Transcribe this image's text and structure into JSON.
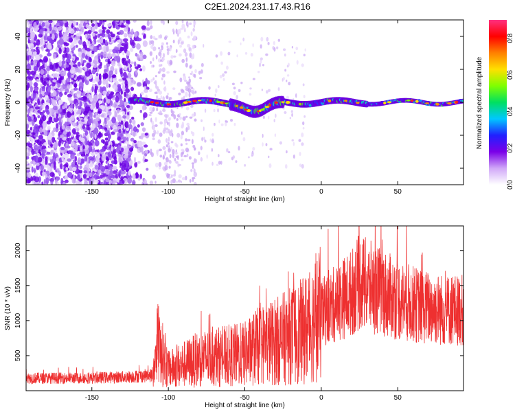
{
  "title": "C2E1.2024.231.17.43.R16",
  "chart_data": [
    {
      "type": "heatmap",
      "xlabel": "Height of straight line (km)",
      "ylabel": "Frequency (Hz)",
      "xlim": [
        -193,
        93
      ],
      "ylim": [
        -50,
        50
      ],
      "xticks": [
        -150,
        -100,
        -50,
        0,
        50
      ],
      "yticks": [
        -40,
        -20,
        0,
        20,
        40
      ],
      "colorbar": {
        "label": "Normalized spectral amplitude",
        "range": [
          0,
          0.9
        ],
        "ticks": [
          "0.0",
          "0.2",
          "0.4",
          "0.6",
          "0.8"
        ],
        "colormap": [
          "#ffffff",
          "#d0a8f8",
          "#7a00e8",
          "#2020ff",
          "#00c8ff",
          "#00e060",
          "#80ff00",
          "#ffe000",
          "#ff8000",
          "#ff0000",
          "#ff3080"
        ]
      },
      "ridge_frequency_hz": 0,
      "grid": false
    },
    {
      "type": "line",
      "xlabel": "Height of straight line (km)",
      "ylabel": "SNR (10 * v/v)",
      "xlim": [
        -193,
        93
      ],
      "ylim": [
        0,
        2350
      ],
      "xticks": [
        -150,
        -100,
        -50,
        0,
        50
      ],
      "yticks": [
        500,
        1000,
        1500,
        2000
      ],
      "color": "#ee3030",
      "envelope": {
        "x": [
          -193,
          -150,
          -125,
          -110,
          -106,
          -100,
          -80,
          -60,
          -50,
          -40,
          -30,
          -20,
          -12,
          -5,
          0,
          10,
          20,
          25,
          35,
          50,
          65,
          80,
          93
        ],
        "y": [
          180,
          180,
          200,
          220,
          650,
          300,
          450,
          500,
          520,
          650,
          700,
          780,
          850,
          1000,
          1100,
          1250,
          1400,
          1550,
          1450,
          1300,
          1200,
          1150,
          1150
        ]
      },
      "grid": false
    }
  ]
}
